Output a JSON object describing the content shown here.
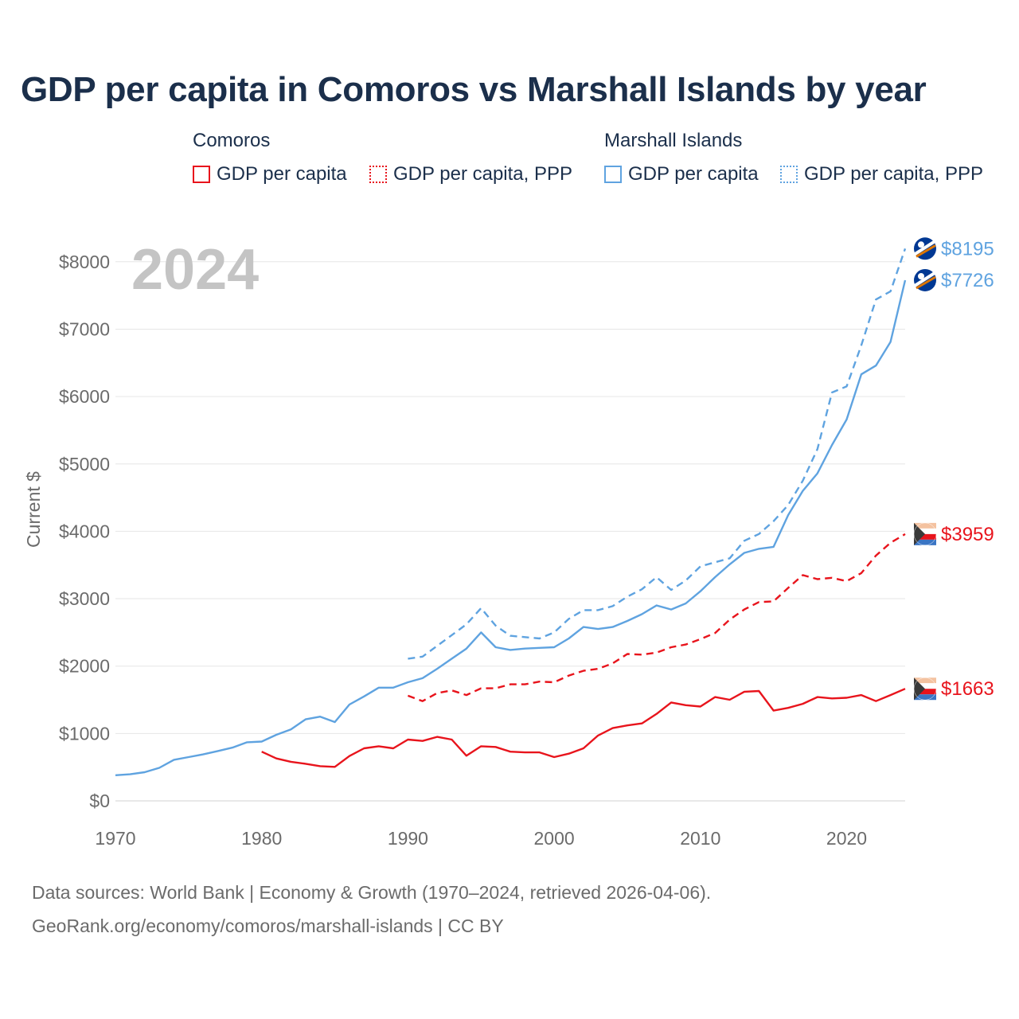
{
  "title": "GDP per capita in Comoros vs Marshall Islands by year",
  "legend": {
    "groups": [
      {
        "name": "Comoros",
        "items": [
          {
            "label": "GDP per capita",
            "style": "solid",
            "color": "#e8141c"
          },
          {
            "label": "GDP per capita, PPP",
            "style": "dotted",
            "color": "#e8141c"
          }
        ]
      },
      {
        "name": "Marshall Islands",
        "items": [
          {
            "label": "GDP per capita",
            "style": "solid",
            "color": "#5fa3e0"
          },
          {
            "label": "GDP per capita, PPP",
            "style": "dotted",
            "color": "#5fa3e0"
          }
        ]
      }
    ]
  },
  "year_label": "2024",
  "source_line1": "Data sources: World Bank | Economy & Growth (1970–2024, retrieved 2026-04-06).",
  "source_line2": "GeoRank.org/economy/comoros/marshall-islands | CC BY",
  "chart_data": {
    "type": "line",
    "title": "GDP per capita in Comoros vs Marshall Islands by year",
    "xlabel": "",
    "ylabel": "Current $",
    "xlim": [
      1970,
      2024
    ],
    "ylim": [
      0,
      8500
    ],
    "x_ticks": [
      1970,
      1980,
      1990,
      2000,
      2010,
      2020
    ],
    "y_ticks": [
      0,
      1000,
      2000,
      3000,
      4000,
      5000,
      6000,
      7000,
      8000
    ],
    "y_tick_labels": [
      "$0",
      "$1000",
      "$2000",
      "$3000",
      "$4000",
      "$5000",
      "$6000",
      "$7000",
      "$8000"
    ],
    "x_tick_labels": [
      "1970",
      "1980",
      "1990",
      "2000",
      "2010",
      "2020"
    ],
    "grid": true,
    "series": [
      {
        "name": "Marshall Islands GDP per capita, PPP",
        "country": "Marshall Islands",
        "color": "#5fa3e0",
        "dash": true,
        "end_label": "$8195",
        "x": [
          1990,
          1991,
          1992,
          1993,
          1994,
          1995,
          1996,
          1997,
          1998,
          1999,
          2000,
          2001,
          2002,
          2003,
          2004,
          2005,
          2006,
          2007,
          2008,
          2009,
          2010,
          2011,
          2012,
          2013,
          2014,
          2015,
          2016,
          2017,
          2018,
          2019,
          2020,
          2021,
          2022,
          2023,
          2024
        ],
        "values": [
          2110,
          2140,
          2300,
          2460,
          2620,
          2860,
          2600,
          2450,
          2430,
          2410,
          2500,
          2700,
          2830,
          2830,
          2890,
          3030,
          3140,
          3320,
          3130,
          3270,
          3480,
          3540,
          3600,
          3860,
          3960,
          4150,
          4390,
          4750,
          5220,
          6060,
          6150,
          6760,
          7440,
          7560,
          8195
        ]
      },
      {
        "name": "Marshall Islands GDP per capita",
        "country": "Marshall Islands",
        "color": "#5fa3e0",
        "dash": false,
        "end_label": "$7726",
        "x": [
          1970,
          1971,
          1972,
          1973,
          1974,
          1975,
          1976,
          1977,
          1978,
          1979,
          1980,
          1981,
          1982,
          1983,
          1984,
          1985,
          1986,
          1987,
          1988,
          1989,
          1990,
          1991,
          1992,
          1993,
          1994,
          1995,
          1996,
          1997,
          1998,
          1999,
          2000,
          2001,
          2002,
          2003,
          2004,
          2005,
          2006,
          2007,
          2008,
          2009,
          2010,
          2011,
          2012,
          2013,
          2014,
          2015,
          2016,
          2017,
          2018,
          2019,
          2020,
          2021,
          2022,
          2023,
          2024
        ],
        "values": [
          380,
          395,
          425,
          490,
          610,
          650,
          690,
          740,
          790,
          870,
          880,
          980,
          1060,
          1210,
          1250,
          1170,
          1430,
          1550,
          1680,
          1680,
          1760,
          1820,
          1960,
          2110,
          2260,
          2500,
          2280,
          2240,
          2260,
          2270,
          2280,
          2410,
          2580,
          2550,
          2580,
          2670,
          2770,
          2900,
          2840,
          2930,
          3110,
          3320,
          3510,
          3680,
          3740,
          3770,
          4240,
          4600,
          4860,
          5280,
          5660,
          6330,
          6460,
          6810,
          7726
        ]
      },
      {
        "name": "Comoros GDP per capita, PPP",
        "country": "Comoros",
        "color": "#e8141c",
        "dash": true,
        "end_label": "$3959",
        "x": [
          1990,
          1991,
          1992,
          1993,
          1994,
          1995,
          1996,
          1997,
          1998,
          1999,
          2000,
          2001,
          2002,
          2003,
          2004,
          2005,
          2006,
          2007,
          2008,
          2009,
          2010,
          2011,
          2012,
          2013,
          2014,
          2015,
          2016,
          2017,
          2018,
          2019,
          2020,
          2021,
          2022,
          2023,
          2024
        ],
        "values": [
          1560,
          1480,
          1600,
          1640,
          1570,
          1670,
          1670,
          1730,
          1730,
          1770,
          1760,
          1860,
          1930,
          1960,
          2040,
          2180,
          2170,
          2200,
          2280,
          2320,
          2400,
          2490,
          2690,
          2840,
          2950,
          2960,
          3160,
          3350,
          3290,
          3310,
          3260,
          3380,
          3640,
          3830,
          3959
        ]
      },
      {
        "name": "Comoros GDP per capita",
        "country": "Comoros",
        "color": "#e8141c",
        "dash": false,
        "end_label": "$1663",
        "x": [
          1980,
          1981,
          1982,
          1983,
          1984,
          1985,
          1986,
          1987,
          1988,
          1989,
          1990,
          1991,
          1992,
          1993,
          1994,
          1995,
          1996,
          1997,
          1998,
          1999,
          2000,
          2001,
          2002,
          2003,
          2004,
          2005,
          2006,
          2007,
          2008,
          2009,
          2010,
          2011,
          2012,
          2013,
          2014,
          2015,
          2016,
          2017,
          2018,
          2019,
          2020,
          2021,
          2022,
          2023,
          2024
        ],
        "values": [
          730,
          630,
          580,
          550,
          515,
          505,
          665,
          780,
          810,
          780,
          910,
          890,
          950,
          910,
          670,
          810,
          800,
          730,
          720,
          720,
          650,
          700,
          780,
          970,
          1080,
          1120,
          1150,
          1290,
          1460,
          1420,
          1400,
          1540,
          1500,
          1620,
          1630,
          1340,
          1380,
          1440,
          1540,
          1520,
          1530,
          1570,
          1480,
          1570,
          1663
        ]
      }
    ]
  }
}
